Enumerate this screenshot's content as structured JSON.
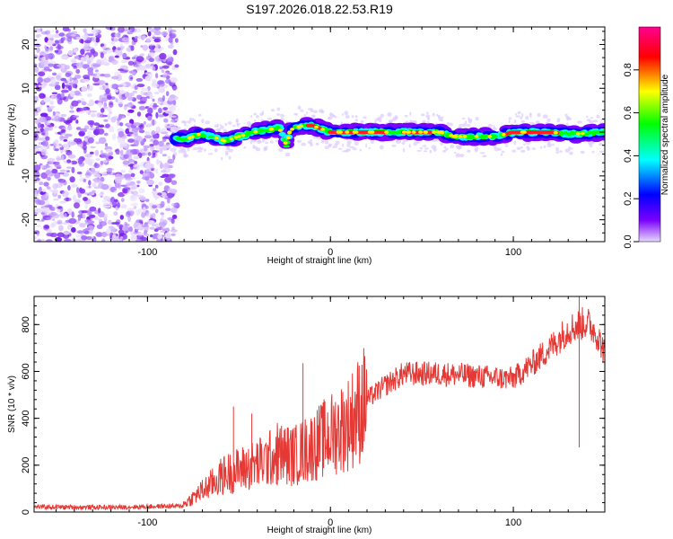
{
  "title": "S197.2026.018.22.53.R19",
  "chart_data": [
    {
      "type": "heatmap",
      "xlabel": "Height of straight line (km)",
      "ylabel": "Frequency (Hz)",
      "xlim": [
        -162,
        150
      ],
      "ylim": [
        -25,
        24
      ],
      "x_ticks": [
        -100,
        0,
        100
      ],
      "x_tick_labels": [
        "-100",
        "0",
        "100"
      ],
      "y_ticks": [
        -20,
        -10,
        0,
        10,
        20
      ],
      "y_tick_labels": [
        "-20",
        "-10",
        "0",
        "10",
        "20"
      ],
      "noise_region_km": [
        -162,
        -84
      ],
      "signal_track": {
        "x": [
          -85,
          -78,
          -72,
          -65,
          -58,
          -50,
          -42,
          -35,
          -28,
          -24,
          -22,
          -15,
          -10,
          0,
          20,
          40,
          60,
          68,
          80,
          90,
          100,
          120,
          130,
          150
        ],
        "freq": [
          -1.5,
          -1.5,
          -0.5,
          -1.0,
          -2.0,
          -1.0,
          0.0,
          0.5,
          1.0,
          -3.0,
          0.5,
          1.5,
          1.5,
          0.0,
          0.0,
          0.0,
          0.0,
          -1.0,
          -1.0,
          -1.0,
          0.0,
          0.0,
          -0.5,
          0.0
        ]
      },
      "colorbar": {
        "label": "Normalized spectral amplitude",
        "range": [
          0,
          1
        ],
        "ticks": [
          0.0,
          0.2,
          0.4,
          0.6,
          0.8
        ],
        "tick_labels": [
          "0.0",
          "0.2",
          "0.4",
          "0.6",
          "0.8"
        ],
        "colors": [
          "#e7d9ff",
          "#7a00ff",
          "#0000ff",
          "#00ffff",
          "#00ff00",
          "#ffff00",
          "#ff0000",
          "#ff0090"
        ]
      }
    },
    {
      "type": "line",
      "xlabel": "Height of straight line (km)",
      "ylabel": "SNR (10 * v/v)",
      "xlim": [
        -162,
        150
      ],
      "ylim": [
        0,
        920
      ],
      "x_ticks": [
        -100,
        0,
        100
      ],
      "x_tick_labels": [
        "-100",
        "0",
        "100"
      ],
      "y_ticks": [
        0,
        200,
        400,
        600,
        800
      ],
      "y_tick_labels": [
        "0",
        "200",
        "400",
        "600",
        "800"
      ],
      "series": [
        {
          "name": "SNR",
          "color": "#e53935",
          "x": [
            -162,
            -120,
            -90,
            -82,
            -78,
            -72,
            -65,
            -58,
            -50,
            -42,
            -35,
            -28,
            -20,
            -10,
            0,
            10,
            20,
            30,
            40,
            60,
            80,
            95,
            100,
            105,
            110,
            120,
            130,
            140,
            145,
            150
          ],
          "y": [
            22,
            20,
            25,
            25,
            45,
            80,
            120,
            160,
            180,
            200,
            220,
            250,
            240,
            280,
            330,
            380,
            480,
            540,
            590,
            590,
            580,
            570,
            570,
            600,
            630,
            700,
            780,
            810,
            770,
            680
          ]
        }
      ],
      "spikes": [
        {
          "x": -53,
          "y": 450
        },
        {
          "x": -43,
          "y": 420
        },
        {
          "x": -15,
          "y": 635
        },
        {
          "x": -29,
          "y": 380
        },
        {
          "x": 136,
          "y": 920
        }
      ]
    }
  ]
}
